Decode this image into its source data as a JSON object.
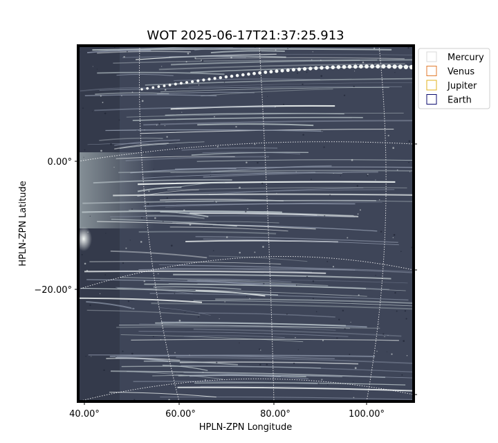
{
  "figure": {
    "title": "WOT 2025-06-17T21:37:25.913",
    "xlabel": "HPLN-ZPN Longitude",
    "ylabel": "HPLN-ZPN Latitude",
    "x_ticks": [
      "40.00°",
      "60.00°",
      "80.00°",
      "100.00°"
    ],
    "y_ticks": [
      "0.00°",
      "−20.00°"
    ],
    "colormap": "bone",
    "grid": "dotted white coordinate grid"
  },
  "legend": {
    "placement": "top-right outside axes",
    "items": [
      {
        "label": "Mercury",
        "color": "#d8d8d8"
      },
      {
        "label": "Venus",
        "color": "#e07a2c"
      },
      {
        "label": "Jupiter",
        "color": "#e0b21e"
      },
      {
        "label": "Earth",
        "color": "#0a0a6e"
      }
    ]
  }
}
